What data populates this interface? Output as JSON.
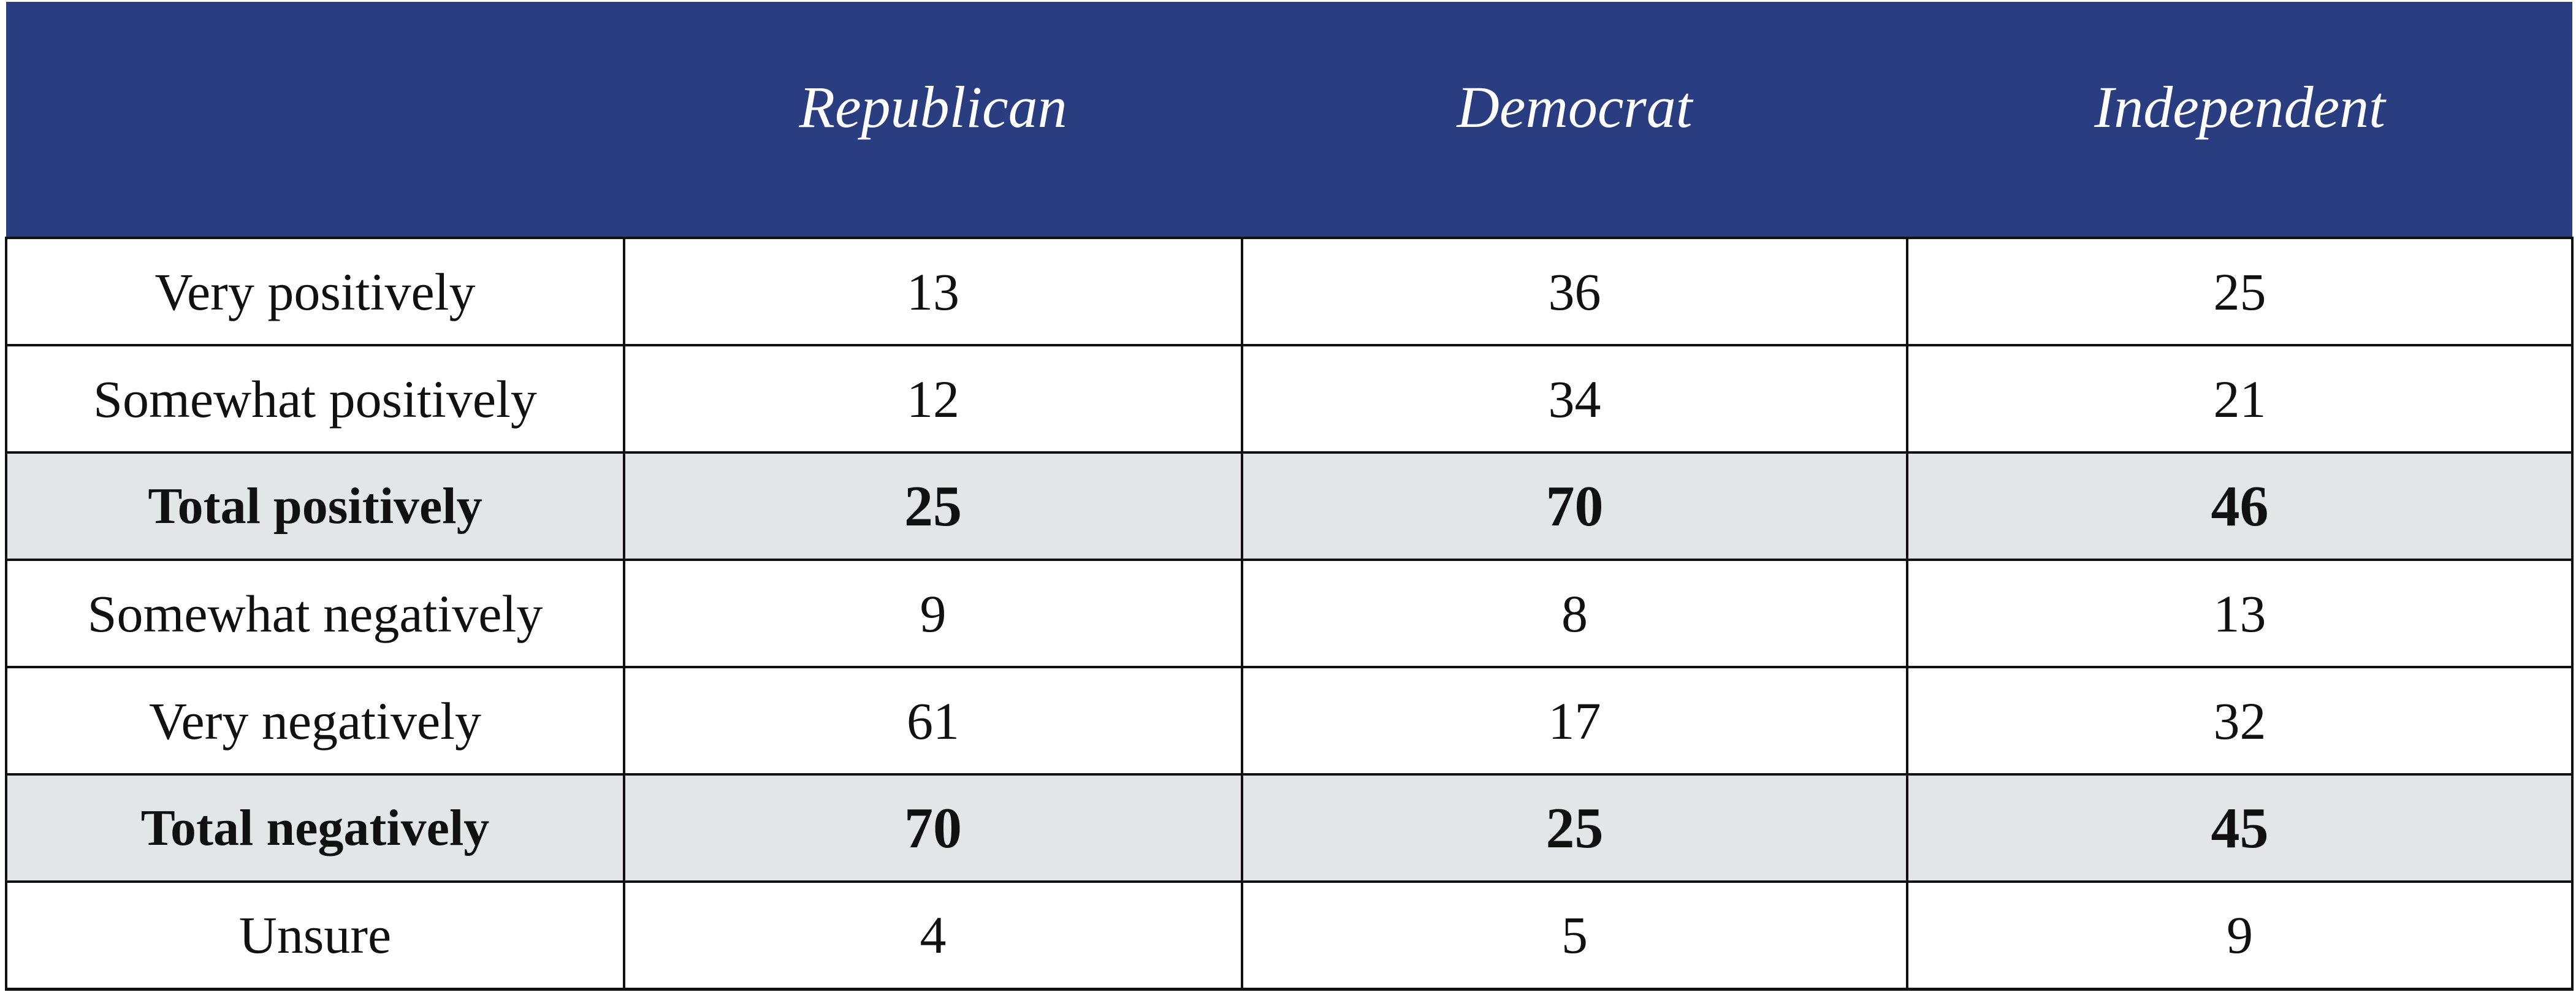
{
  "chart_data": {
    "type": "table",
    "columns": [
      "",
      "Republican",
      "Democrat",
      "Independent"
    ],
    "rows": [
      {
        "label": "Very positively",
        "values": [
          "13",
          "36",
          "25"
        ],
        "emphasis": false
      },
      {
        "label": "Somewhat positively",
        "values": [
          "12",
          "34",
          "21"
        ],
        "emphasis": false
      },
      {
        "label": "Total positively",
        "values": [
          "25",
          "70",
          "46"
        ],
        "emphasis": true
      },
      {
        "label": "Somewhat negatively",
        "values": [
          "9",
          "8",
          "13"
        ],
        "emphasis": false
      },
      {
        "label": "Very negatively",
        "values": [
          "61",
          "17",
          "32"
        ],
        "emphasis": false
      },
      {
        "label": "Total negatively",
        "values": [
          "70",
          "25",
          "45"
        ],
        "emphasis": true
      },
      {
        "label": "Unsure",
        "values": [
          "4",
          "5",
          "9"
        ],
        "emphasis": false
      }
    ]
  },
  "colors": {
    "header_background": "#293d80",
    "header_text": "#ffffff",
    "total_row_background": "#e3e6e7",
    "grid_line": "#111111"
  }
}
